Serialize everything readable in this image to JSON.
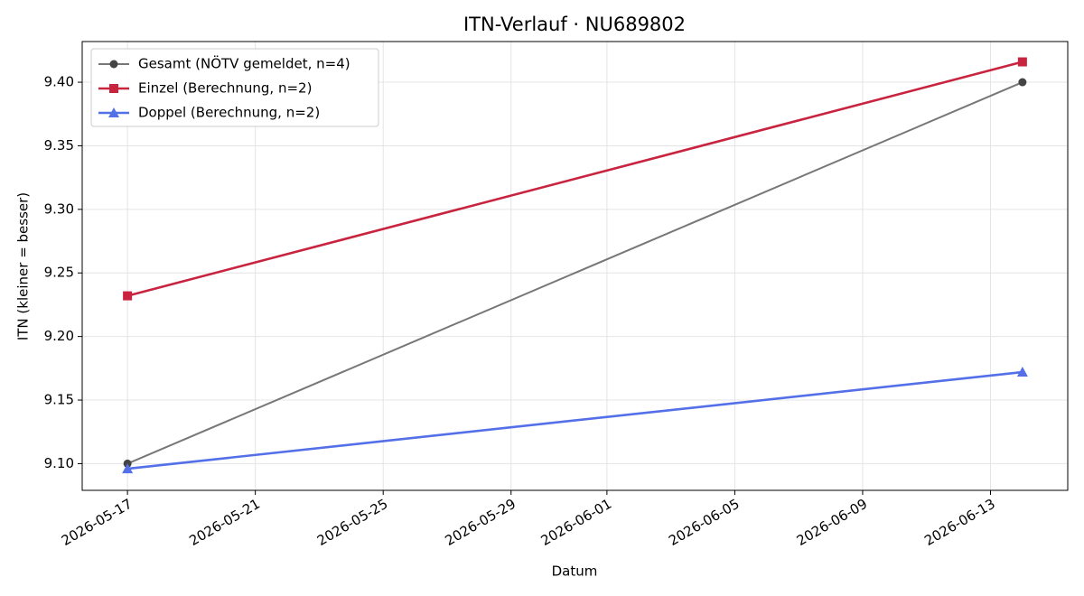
{
  "chart_data": {
    "type": "line",
    "title": "ITN-Verlauf · NU689802",
    "x_label": "Datum",
    "y_label": "ITN  (kleiner = besser)",
    "x": [
      "2026-05-17",
      "2026-06-14"
    ],
    "series": [
      {
        "name": "Gesamt (NÖTV gemeldet, n=4)",
        "color": "#777777",
        "marker_color": "#444444",
        "marker": "o",
        "values": [
          9.1,
          9.4
        ]
      },
      {
        "name": "Einzel (Berechnung, n=2)",
        "color": "#c8243f",
        "marker_color": "#c8243f",
        "marker": "s",
        "values": [
          9.232,
          9.416
        ]
      },
      {
        "name": "Doppel (Berechnung, n=2)",
        "color": "#5470e8",
        "marker_color": "#5470e8",
        "marker": "^",
        "values": [
          9.096,
          9.172
        ]
      }
    ],
    "xlim": [
      "2026-05-15T14:00",
      "2026-06-15T10:00"
    ],
    "xticks": [
      "2026-05-17",
      "2026-05-21",
      "2026-05-25",
      "2026-05-29",
      "2026-06-01",
      "2026-06-05",
      "2026-06-09",
      "2026-06-13"
    ],
    "ylim": [
      9.079,
      9.432
    ],
    "yticks": [
      {
        "value": 9.1,
        "label": "9.10"
      },
      9.15,
      {
        "value": 9.2,
        "label": "9.20"
      },
      9.25,
      {
        "value": 9.3,
        "label": "9.30"
      },
      9.35,
      {
        "value": 9.4,
        "label": "9.40"
      }
    ],
    "grid": true,
    "legend": "upper left"
  }
}
